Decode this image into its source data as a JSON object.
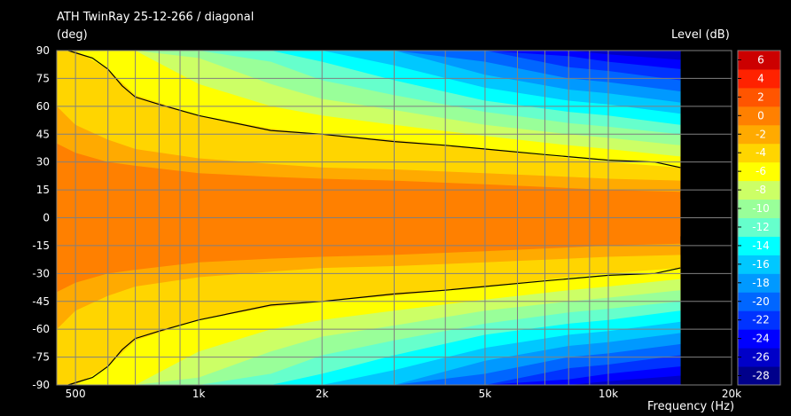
{
  "chart_data": {
    "type": "heatmap",
    "title": "ATH TwinRay 25-12-266 / diagonal",
    "ylabel": "(deg)",
    "colorbar_label": "Level  (dB)",
    "xlabel": "Frequency  (Hz)",
    "x_scale": "log",
    "xlim": [
      450,
      20000
    ],
    "ylim": [
      -90,
      90
    ],
    "data_xmax": 15000,
    "x_ticks": [
      {
        "value": 500,
        "label": "500"
      },
      {
        "value": 1000,
        "label": "1k"
      },
      {
        "value": 2000,
        "label": "2k"
      },
      {
        "value": 5000,
        "label": "5k"
      },
      {
        "value": 10000,
        "label": "10k"
      },
      {
        "value": 20000,
        "label": "20k"
      }
    ],
    "x_grid": [
      500,
      600,
      700,
      800,
      900,
      1000,
      2000,
      3000,
      4000,
      5000,
      6000,
      7000,
      8000,
      9000,
      10000,
      20000
    ],
    "y_ticks": [
      90,
      75,
      60,
      45,
      30,
      15,
      0,
      -15,
      -30,
      -45,
      -60,
      -75,
      -90
    ],
    "y_tick_labels": [
      "90",
      "75",
      "60",
      "45",
      "30",
      "15",
      "0",
      "-15",
      "-30",
      "-45",
      "-60",
      "-75",
      "-90"
    ],
    "colorbar": {
      "min": -29,
      "max": 7,
      "step": 2,
      "tick_values": [
        6,
        4,
        2,
        0,
        -2,
        -4,
        -6,
        -8,
        -10,
        -12,
        -14,
        -16,
        -18,
        -20,
        -22,
        -24,
        -26,
        -28
      ],
      "tick_labels": [
        "6",
        "4",
        "2",
        "0",
        "-2",
        "-4",
        "-6",
        "-8",
        "-10",
        "-12",
        "-14",
        "-16",
        "-18",
        "-20",
        "-22",
        "-24",
        "-26",
        "-28"
      ],
      "colors": [
        "#00008b",
        "#0000c8",
        "#0000ff",
        "#0033ff",
        "#0066ff",
        "#0099ff",
        "#00c8ff",
        "#00ffff",
        "#66ffcc",
        "#99ff99",
        "#ccff66",
        "#ffff00",
        "#ffd500",
        "#ffaa00",
        "#ff8000",
        "#ff5500",
        "#ff2200",
        "#cc0000"
      ]
    },
    "half_width_at_0dB_deg": {
      "freq": [
        450,
        500,
        700,
        1000,
        2000,
        5000,
        10000,
        15000
      ],
      "deg": [
        10,
        10,
        10,
        10,
        10,
        10,
        10,
        10
      ]
    },
    "contour_angle_by_level": {
      "freq": [
        450,
        500,
        600,
        700,
        1000,
        1500,
        2000,
        3000,
        5000,
        8000,
        10000,
        15000
      ],
      "levels": [
        {
          "level": -2,
          "deg": [
            40,
            35,
            30,
            28,
            24,
            22,
            21,
            20,
            18,
            16,
            15,
            14
          ]
        },
        {
          "level": -4,
          "deg": [
            60,
            50,
            42,
            37,
            32,
            29,
            27,
            26,
            24,
            22,
            21,
            20
          ]
        },
        {
          "level": -6,
          "deg": [
            90,
            90,
            80,
            66,
            55,
            48,
            45,
            42,
            37,
            32,
            30,
            27
          ]
        },
        {
          "level": -8,
          "deg": [
            90,
            90,
            90,
            90,
            72,
            60,
            55,
            50,
            44,
            39,
            37,
            33
          ]
        },
        {
          "level": -10,
          "deg": [
            90,
            90,
            90,
            90,
            86,
            72,
            64,
            58,
            50,
            45,
            43,
            39
          ]
        },
        {
          "level": -12,
          "deg": [
            90,
            90,
            90,
            90,
            90,
            84,
            74,
            66,
            57,
            51,
            49,
            45
          ]
        },
        {
          "level": -14,
          "deg": [
            90,
            90,
            90,
            90,
            90,
            90,
            84,
            74,
            63,
            57,
            55,
            50
          ]
        },
        {
          "level": -16,
          "deg": [
            90,
            90,
            90,
            90,
            90,
            90,
            90,
            82,
            70,
            63,
            61,
            56
          ]
        },
        {
          "level": -18,
          "deg": [
            90,
            90,
            90,
            90,
            90,
            90,
            90,
            90,
            77,
            69,
            67,
            62
          ]
        },
        {
          "level": -20,
          "deg": [
            90,
            90,
            90,
            90,
            90,
            90,
            90,
            90,
            84,
            75,
            73,
            68
          ]
        },
        {
          "level": -22,
          "deg": [
            90,
            90,
            90,
            90,
            90,
            90,
            90,
            90,
            90,
            81,
            79,
            74
          ]
        },
        {
          "level": -24,
          "deg": [
            90,
            90,
            90,
            90,
            90,
            90,
            90,
            90,
            90,
            87,
            84,
            80
          ]
        },
        {
          "level": -26,
          "deg": [
            90,
            90,
            90,
            90,
            90,
            90,
            90,
            90,
            90,
            90,
            88,
            85
          ]
        }
      ]
    },
    "minus6dB_line": {
      "freq": [
        480,
        550,
        600,
        650,
        700,
        800,
        1000,
        1500,
        2000,
        3000,
        4000,
        5000,
        7000,
        10000,
        13000,
        15000
      ],
      "deg": [
        90,
        86,
        80,
        71,
        65,
        61,
        55,
        47,
        45,
        41,
        39,
        37,
        34,
        31,
        30,
        27
      ]
    }
  }
}
